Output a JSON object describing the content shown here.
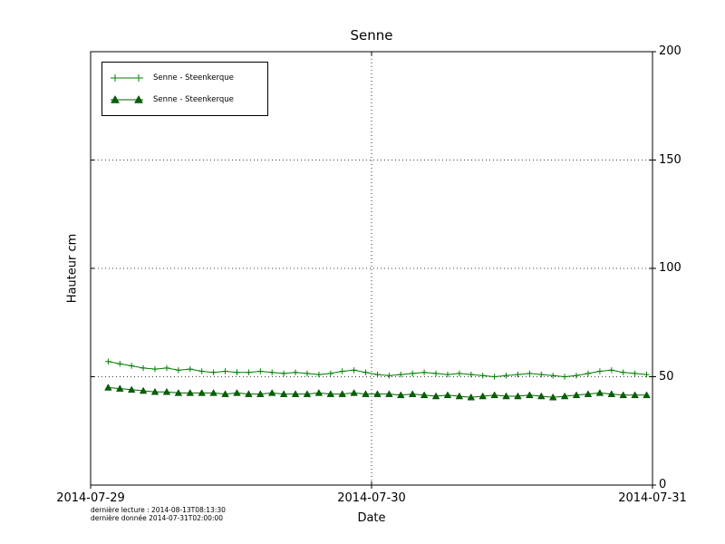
{
  "title": "Senne",
  "xlabel": "Date",
  "ylabel": "Hauteur cm",
  "footer": {
    "line1": "dernière lecture : 2014-08-13T08:13:30",
    "line2": "dernière donnée  2014-07-31T02:00:00"
  },
  "legend": {
    "items": [
      {
        "label": "Senne - Steenkerque",
        "marker": "plus"
      },
      {
        "label": "Senne - Steenkerque",
        "marker": "triangle"
      }
    ]
  },
  "axes": {
    "y_ticks": [
      0,
      50,
      100,
      150,
      200
    ],
    "x_ticks": [
      "2014-07-29",
      "2014-07-30",
      "2014-07-31"
    ]
  },
  "colors": {
    "series_line": "#008000",
    "series_triangle": "#006400",
    "grid": "#000000"
  },
  "chart_data": {
    "type": "line",
    "title": "Senne",
    "xlabel": "Date",
    "ylabel": "Hauteur cm",
    "ylim": [
      0,
      200
    ],
    "x_range_hours": [
      0,
      48
    ],
    "x_tick_labels": [
      "2014-07-29",
      "2014-07-30",
      "2014-07-31"
    ],
    "grid": true,
    "legend_position": "upper left",
    "x_hours_start": 1.5,
    "x_hours_step": 1,
    "series": [
      {
        "name": "Senne - Steenkerque",
        "marker": "plus",
        "color": "#008000",
        "values": [
          57,
          56,
          55,
          54,
          53.5,
          54,
          53,
          53.5,
          52.5,
          52,
          52.5,
          52,
          52,
          52.5,
          52,
          51.5,
          52,
          51.5,
          51,
          51.5,
          52.5,
          53,
          52,
          51,
          50.5,
          51,
          51.5,
          52,
          51.5,
          51,
          51.5,
          51,
          50.5,
          50,
          50.5,
          51,
          51.5,
          51,
          50.5,
          50,
          50.5,
          51.5,
          52.5,
          53,
          52,
          51.5,
          51
        ]
      },
      {
        "name": "Senne - Steenkerque",
        "marker": "triangle",
        "color": "#006400",
        "values": [
          45,
          44.5,
          44,
          43.5,
          43,
          43,
          42.5,
          42.5,
          42.5,
          42.5,
          42,
          42.5,
          42,
          42,
          42.5,
          42,
          42,
          42,
          42.5,
          42,
          42,
          42.5,
          42,
          42,
          42,
          41.5,
          42,
          41.5,
          41,
          41.5,
          41,
          40.5,
          41,
          41.5,
          41,
          41,
          41.5,
          41,
          40.5,
          41,
          41.5,
          42,
          42.5,
          42,
          41.5,
          41.5,
          41.5
        ]
      }
    ]
  }
}
